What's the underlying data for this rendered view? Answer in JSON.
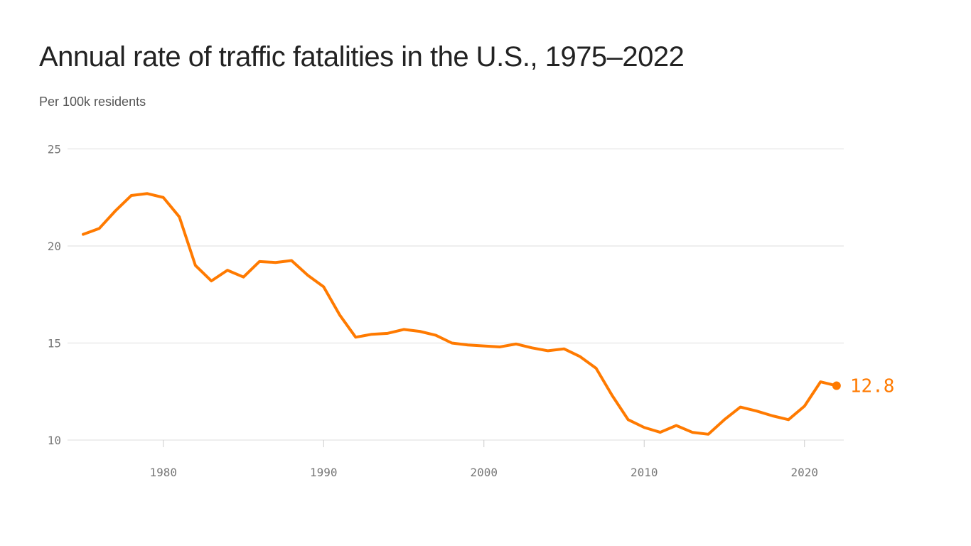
{
  "chart_data": {
    "type": "line",
    "title": "Annual rate of traffic fatalities in the U.S., 1975–2022",
    "subtitle": "Per 100k residents",
    "xlabel": "",
    "ylabel": "",
    "xlim": [
      1975,
      2022
    ],
    "ylim": [
      10,
      25
    ],
    "x_ticks": [
      1980,
      1990,
      2000,
      2010,
      2020
    ],
    "y_ticks": [
      10,
      15,
      20,
      25
    ],
    "grid": "horizontal",
    "color": "#ff7a00",
    "end_label": "12.8",
    "x": [
      1975,
      1976,
      1977,
      1978,
      1979,
      1980,
      1981,
      1982,
      1983,
      1984,
      1985,
      1986,
      1987,
      1988,
      1989,
      1990,
      1991,
      1992,
      1993,
      1994,
      1995,
      1996,
      1997,
      1998,
      1999,
      2000,
      2001,
      2002,
      2003,
      2004,
      2005,
      2006,
      2007,
      2008,
      2009,
      2010,
      2011,
      2012,
      2013,
      2014,
      2015,
      2016,
      2017,
      2018,
      2019,
      2020,
      2021,
      2022
    ],
    "values": [
      20.6,
      20.9,
      21.8,
      22.6,
      22.7,
      22.5,
      21.5,
      19.0,
      18.2,
      18.75,
      18.4,
      19.2,
      19.15,
      19.25,
      18.5,
      17.9,
      16.45,
      15.3,
      15.45,
      15.5,
      15.7,
      15.6,
      15.4,
      15.0,
      14.9,
      14.85,
      14.8,
      14.95,
      14.75,
      14.6,
      14.7,
      14.3,
      13.7,
      12.3,
      11.05,
      10.65,
      10.4,
      10.75,
      10.4,
      10.3,
      11.05,
      11.7,
      11.5,
      11.25,
      11.05,
      11.75,
      13.0,
      12.8
    ]
  }
}
